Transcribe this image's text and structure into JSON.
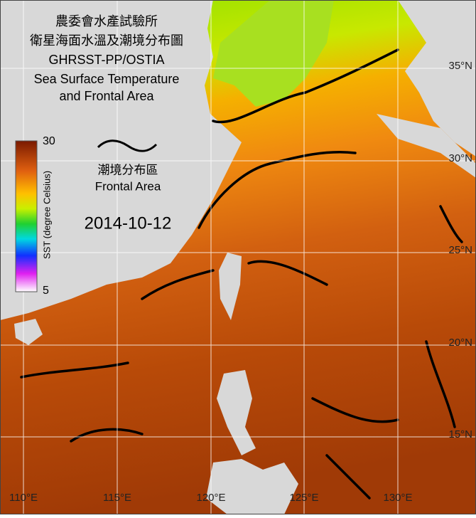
{
  "title": [
    "農委會水產試驗所",
    "衛星海面水溫及潮境分布圖",
    "GHRSST-PP/OSTIA",
    "Sea Surface Temperature",
    "and Frontal Area"
  ],
  "legend": {
    "label_zh": "潮境分布區",
    "label_en": "Frontal Area"
  },
  "date": "2014-10-12",
  "colorbar": {
    "label": "SST (degree Celsius)",
    "max": 30,
    "min": 5
  },
  "lat_labels": [
    "35°N",
    "30°N",
    "25°N",
    "20°N",
    "15°N"
  ],
  "lon_labels": [
    "110°E",
    "115°E",
    "120°E",
    "125°E",
    "130°E"
  ]
}
